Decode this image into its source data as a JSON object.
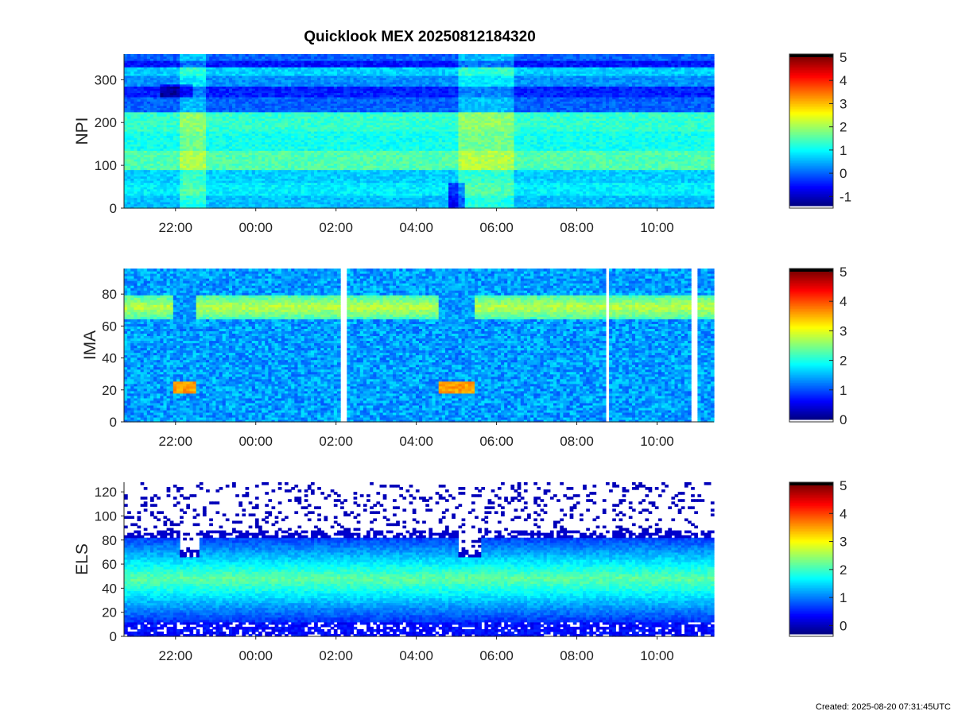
{
  "figure": {
    "title": "Quicklook MEX 20250812184320",
    "created": "Created: 2025-08-20 07:31:45UTC"
  },
  "chart_data": [
    {
      "type": "heatmap",
      "ylabel": "NPI",
      "xticks": [
        "22:00",
        "00:00",
        "02:00",
        "04:00",
        "06:00",
        "08:00",
        "10:00"
      ],
      "yticks": [
        0,
        100,
        200,
        300
      ],
      "ylim": [
        0,
        360
      ],
      "colorbar": {
        "ticks": [
          "-1",
          "0",
          "1",
          "2",
          "3",
          "4",
          "5"
        ],
        "range": [
          -1.4,
          5
        ]
      },
      "row_bands": [
        {
          "range": [
            0,
            30
          ],
          "level": 0.6
        },
        {
          "range": [
            30,
            60
          ],
          "level": 0.9
        },
        {
          "range": [
            60,
            90
          ],
          "level": 0.7
        },
        {
          "range": [
            90,
            135
          ],
          "level": 1.5
        },
        {
          "range": [
            135,
            180
          ],
          "level": 1.1
        },
        {
          "range": [
            180,
            225
          ],
          "level": 1.3
        },
        {
          "range": [
            225,
            260
          ],
          "level": 0.0
        },
        {
          "range": [
            260,
            285
          ],
          "level": -0.4
        },
        {
          "range": [
            285,
            310
          ],
          "level": 0.3
        },
        {
          "range": [
            310,
            330
          ],
          "level": 0.7
        },
        {
          "range": [
            330,
            345
          ],
          "level": -0.5
        },
        {
          "range": [
            345,
            360
          ],
          "level": 0.0
        }
      ]
    },
    {
      "type": "heatmap",
      "ylabel": "IMA",
      "xticks": [
        "22:00",
        "00:00",
        "02:00",
        "04:00",
        "06:00",
        "08:00",
        "10:00"
      ],
      "yticks": [
        0,
        20,
        40,
        60,
        80
      ],
      "ylim": [
        0,
        96
      ],
      "colorbar": {
        "ticks": [
          "0",
          "1",
          "2",
          "3",
          "4",
          "5"
        ],
        "range": [
          0,
          5
        ]
      },
      "background_level": 1.4,
      "band": {
        "center": 72,
        "width": 8,
        "level": 2.8
      },
      "low_energy_events": [
        {
          "start": "21:55",
          "end": "22:30",
          "energy": 22,
          "level": 3.6
        },
        {
          "start": "04:35",
          "end": "05:25",
          "energy": 22,
          "level": 3.6
        }
      ],
      "data_gaps": [
        "02:12",
        "08:45",
        "10:55"
      ]
    },
    {
      "type": "heatmap",
      "ylabel": "ELS",
      "xticks": [
        "22:00",
        "00:00",
        "02:00",
        "04:00",
        "06:00",
        "08:00",
        "10:00"
      ],
      "yticks": [
        0,
        20,
        40,
        60,
        80,
        100,
        120
      ],
      "ylim": [
        0,
        128
      ],
      "colorbar": {
        "ticks": [
          "0",
          "1",
          "2",
          "3",
          "4",
          "5"
        ],
        "range": [
          -0.3,
          5
        ]
      },
      "peak_energy": 48,
      "peak_level": 2.2,
      "cutoff_energy": 82,
      "dips": [
        {
          "time": "22:20",
          "energy": 55
        },
        {
          "time": "05:20",
          "energy": 55
        }
      ]
    }
  ]
}
